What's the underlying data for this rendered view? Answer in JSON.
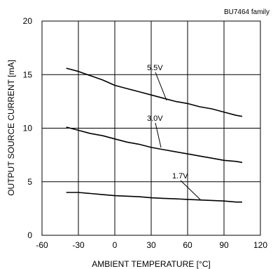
{
  "chart_data": {
    "type": "line",
    "title": "",
    "top_label": "BU7464 family",
    "xlabel": "AMBIENT TEMPERATURE [°C]",
    "ylabel": "OUTPUT SOURCE CURRENT [mA]",
    "xlim": [
      -60,
      120
    ],
    "ylim": [
      0,
      20
    ],
    "xticks": [
      "-60",
      "-30",
      "0",
      "30",
      "60",
      "90",
      "120"
    ],
    "yticks": [
      "0",
      "5",
      "10",
      "15",
      "20"
    ],
    "grid": true,
    "series": [
      {
        "name": "5.5V",
        "x": [
          -40,
          -30,
          -20,
          -10,
          0,
          10,
          20,
          30,
          40,
          50,
          60,
          70,
          80,
          90,
          100,
          105
        ],
        "y": [
          15.6,
          15.3,
          14.9,
          14.5,
          14.0,
          13.7,
          13.4,
          13.1,
          12.8,
          12.5,
          12.3,
          12.0,
          11.8,
          11.5,
          11.2,
          11.1
        ]
      },
      {
        "name": "3.0V",
        "x": [
          -40,
          -30,
          -20,
          -10,
          0,
          10,
          20,
          30,
          40,
          50,
          60,
          70,
          80,
          90,
          100,
          105
        ],
        "y": [
          10.1,
          9.8,
          9.5,
          9.3,
          9.0,
          8.7,
          8.5,
          8.2,
          8.0,
          7.8,
          7.6,
          7.4,
          7.2,
          7.0,
          6.9,
          6.8
        ]
      },
      {
        "name": "1.7V",
        "x": [
          -40,
          -30,
          -20,
          -10,
          0,
          10,
          20,
          30,
          40,
          50,
          60,
          70,
          80,
          90,
          100,
          105
        ],
        "y": [
          4.0,
          4.0,
          3.9,
          3.8,
          3.7,
          3.65,
          3.6,
          3.5,
          3.45,
          3.4,
          3.35,
          3.3,
          3.25,
          3.2,
          3.1,
          3.1
        ]
      }
    ],
    "annotations": [
      "5.5V",
      "3.0V",
      "1.7V"
    ]
  }
}
